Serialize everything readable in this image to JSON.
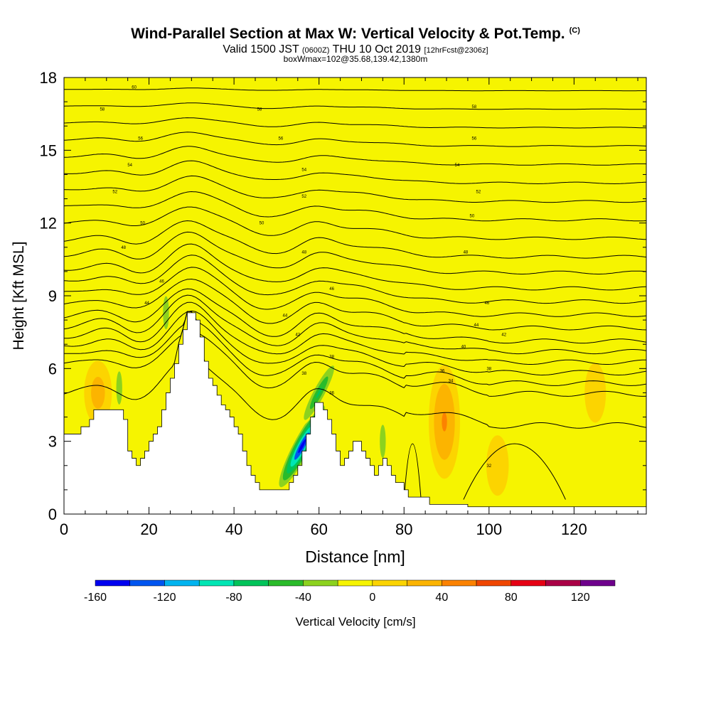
{
  "header": {
    "title": "Wind-Parallel Section at Max W: Vertical Velocity & Pot.Temp.",
    "copyright_mark": "(C)",
    "valid_prefix": "Valid 1500 JST",
    "valid_zulu": "(0600Z)",
    "valid_date": "THU 10 Oct 2019",
    "forecast_tag": "[12hrFcst@2306z]",
    "box_info": "boxWmax=102@35.68,139.42,1380m"
  },
  "chart_data": {
    "type": "heatmap",
    "xlabel": "Distance [nm]",
    "ylabel": "Height [Kft MSL]",
    "xlim": [
      0,
      137
    ],
    "ylim": [
      0,
      18
    ],
    "x_ticks": [
      0,
      20,
      40,
      60,
      80,
      100,
      120
    ],
    "y_ticks": [
      0,
      3,
      6,
      9,
      12,
      15,
      18
    ],
    "grid": false,
    "field_background_color": "#f6f400",
    "terrain": {
      "color": "#ffffff",
      "profile_x": [
        0,
        3,
        4,
        6,
        7,
        13,
        14,
        15,
        16,
        17,
        18,
        19,
        20,
        21,
        22,
        23,
        24,
        25,
        26,
        27,
        28,
        29,
        30,
        31,
        32,
        33,
        34,
        35,
        36,
        37,
        38,
        39,
        40,
        41,
        42,
        43,
        44,
        45,
        46,
        47,
        48,
        49,
        50,
        51,
        52,
        53,
        54,
        55,
        56,
        57,
        58,
        59,
        60,
        61,
        62,
        63,
        64,
        65,
        66,
        67,
        68,
        69,
        70,
        71,
        72,
        73,
        74,
        75,
        76,
        77,
        78,
        79,
        80,
        81,
        82,
        83,
        84,
        85,
        86,
        87,
        88,
        89,
        90,
        91,
        92,
        93,
        95,
        100,
        137
      ],
      "profile_height_kft": [
        3.3,
        3.3,
        3.6,
        3.9,
        4.3,
        4.3,
        3.9,
        2.6,
        2.3,
        2.0,
        2.3,
        2.6,
        3.0,
        3.3,
        3.6,
        4.3,
        5.0,
        5.6,
        6.2,
        7.0,
        7.6,
        8.3,
        8.3,
        8.0,
        7.3,
        6.3,
        5.6,
        5.3,
        4.9,
        4.5,
        4.3,
        4.0,
        3.6,
        3.3,
        2.6,
        2.0,
        1.6,
        1.3,
        1.0,
        1.0,
        1.0,
        1.0,
        1.0,
        1.0,
        1.0,
        1.3,
        1.6,
        2.0,
        2.6,
        3.3,
        4.0,
        4.6,
        4.6,
        4.3,
        3.9,
        3.3,
        2.6,
        2.0,
        2.3,
        2.6,
        3.0,
        3.0,
        2.6,
        2.3,
        2.0,
        1.6,
        2.0,
        2.3,
        2.0,
        1.6,
        1.3,
        1.3,
        1.0,
        0.7,
        0.7,
        0.7,
        0.7,
        0.7,
        0.4,
        0.4,
        0.4,
        0.4,
        0.4,
        0.4,
        0.4,
        0.4,
        0.3,
        0.3,
        0.3
      ]
    },
    "colorbar": {
      "label": "Vertical Velocity [cm/s]",
      "ticks": [
        -160,
        -120,
        -80,
        -40,
        0,
        40,
        80,
        120
      ],
      "bounds": [
        -160,
        140
      ],
      "step": 20,
      "colors": [
        "#0000f0",
        "#0055f0",
        "#00b4f0",
        "#00e6b4",
        "#00c45a",
        "#2abb2a",
        "#8cd21e",
        "#f6f400",
        "#fcd400",
        "#fcb400",
        "#fc8200",
        "#f04600",
        "#e60014",
        "#aa0046",
        "#6e008c"
      ]
    },
    "vertical_velocity_features_cm_s": [
      {
        "kind": "updraft",
        "x": 89.5,
        "height_kft": 3.4,
        "peak": 102
      },
      {
        "kind": "updraft_halo",
        "x": 89.5,
        "height_kft": 3.8,
        "peak": 40
      },
      {
        "kind": "downdraft",
        "x": 56,
        "height_kft": 2.8,
        "peak": -150
      },
      {
        "kind": "downdraft",
        "x": 60,
        "height_kft": 5.0,
        "peak": -70
      },
      {
        "kind": "downdraft",
        "x": 24,
        "height_kft": 8.3,
        "peak": -40
      },
      {
        "kind": "downdraft",
        "x": 13,
        "height_kft": 5.2,
        "peak": -40
      },
      {
        "kind": "downdraft",
        "x": 75,
        "height_kft": 3.0,
        "peak": -40
      },
      {
        "kind": "weak_updraft",
        "x": 8,
        "height_kft": 5.0,
        "peak": 30
      },
      {
        "kind": "weak_updraft",
        "x": 102,
        "height_kft": 2.0,
        "peak": 15
      },
      {
        "kind": "weak_updraft",
        "x": 125,
        "height_kft": 5.0,
        "peak": 12
      }
    ],
    "potential_temperature": {
      "line_color": "#000000",
      "isentrope_base_heights_kft": [
        4.8,
        6.0,
        6.4,
        6.8,
        7.2,
        7.6,
        8.0,
        8.5,
        9.0,
        9.5,
        10.0,
        10.6,
        11.2,
        11.9,
        12.6,
        13.3,
        14.0,
        14.7,
        15.4,
        16.1,
        16.8,
        17.5
      ],
      "contour_labels": [
        {
          "text": "60",
          "x": 16.5,
          "height_kft": 17.6
        },
        {
          "text": "58",
          "x": 9,
          "height_kft": 16.7
        },
        {
          "text": "58",
          "x": 46,
          "height_kft": 16.7
        },
        {
          "text": "58",
          "x": 96.5,
          "height_kft": 16.8
        },
        {
          "text": "56",
          "x": 18,
          "height_kft": 15.5
        },
        {
          "text": "56",
          "x": 51,
          "height_kft": 15.5
        },
        {
          "text": "56",
          "x": 96.5,
          "height_kft": 15.5
        },
        {
          "text": "54",
          "x": 15.5,
          "height_kft": 14.4
        },
        {
          "text": "54",
          "x": 56.5,
          "height_kft": 14.2
        },
        {
          "text": "54",
          "x": 92.5,
          "height_kft": 14.4
        },
        {
          "text": "52",
          "x": 12,
          "height_kft": 13.3
        },
        {
          "text": "52",
          "x": 56.5,
          "height_kft": 13.1
        },
        {
          "text": "52",
          "x": 97.5,
          "height_kft": 13.3
        },
        {
          "text": "50",
          "x": 18.5,
          "height_kft": 12.0
        },
        {
          "text": "50",
          "x": 46.5,
          "height_kft": 12.0
        },
        {
          "text": "50",
          "x": 96,
          "height_kft": 12.3
        },
        {
          "text": "48",
          "x": 14,
          "height_kft": 11.0
        },
        {
          "text": "48",
          "x": 56.5,
          "height_kft": 10.8
        },
        {
          "text": "48",
          "x": 94.5,
          "height_kft": 10.8
        },
        {
          "text": "46",
          "x": 23,
          "height_kft": 9.6
        },
        {
          "text": "46",
          "x": 63,
          "height_kft": 9.3
        },
        {
          "text": "46",
          "x": 99.5,
          "height_kft": 8.7
        },
        {
          "text": "44",
          "x": 19.5,
          "height_kft": 8.7
        },
        {
          "text": "44",
          "x": 52,
          "height_kft": 8.2
        },
        {
          "text": "44",
          "x": 97,
          "height_kft": 7.8
        },
        {
          "text": "42",
          "x": 55,
          "height_kft": 7.4
        },
        {
          "text": "42",
          "x": 103.5,
          "height_kft": 7.4
        },
        {
          "text": "40",
          "x": 94,
          "height_kft": 6.9
        },
        {
          "text": "38",
          "x": 56.5,
          "height_kft": 5.8
        },
        {
          "text": "38",
          "x": 63,
          "height_kft": 6.5
        },
        {
          "text": "38",
          "x": 100,
          "height_kft": 6.0
        },
        {
          "text": "36",
          "x": 89,
          "height_kft": 5.9
        },
        {
          "text": "36",
          "x": 63,
          "height_kft": 5.0
        },
        {
          "text": "34",
          "x": 91,
          "height_kft": 5.5
        },
        {
          "text": "32",
          "x": 100,
          "height_kft": 2.0
        }
      ]
    }
  }
}
